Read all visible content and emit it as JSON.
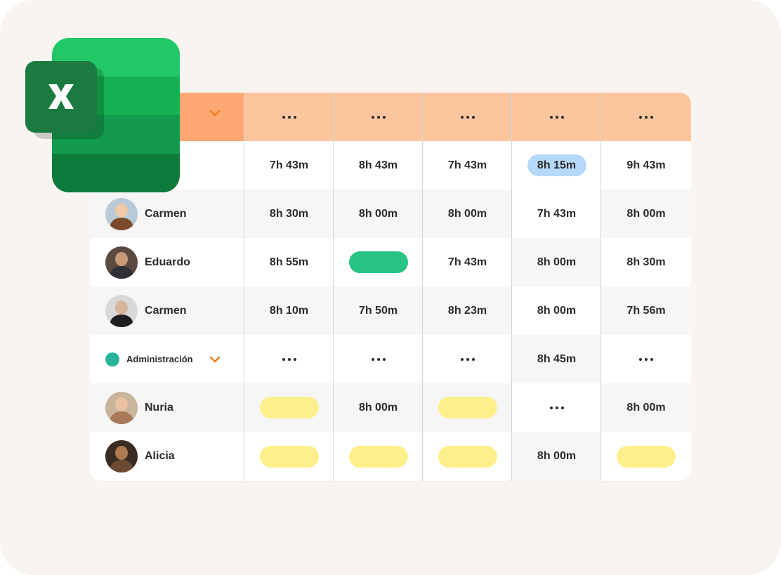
{
  "colors": {
    "header_bg": "#fdc59d",
    "header_first_cell": "#fda873",
    "accent_chevron": "#f07d1a",
    "pill_yellow": "#fdf08c",
    "pill_green": "#27c485",
    "pill_blue": "#b6d9fb",
    "group_dot": "#2bb39a"
  },
  "header": {
    "chevron_icon": "chevron-down-icon",
    "more_icon": "ellipsis-icon"
  },
  "rows": [
    {
      "name": "",
      "cells": [
        "7h 43m",
        "8h 43m",
        "7h 43m",
        "8h 15m",
        "9h 43m"
      ]
    },
    {
      "name": "Carmen",
      "cells": [
        "8h 30m",
        "8h 00m",
        "8h 00m",
        "7h 43m",
        "8h 00m"
      ]
    },
    {
      "name": "Eduardo",
      "cells": [
        "8h 55m",
        "",
        "7h 43m",
        "8h 00m",
        "8h 30m"
      ]
    },
    {
      "name": "Carmen",
      "cells": [
        "8h 10m",
        "7h 50m",
        "8h 23m",
        "8h 00m",
        "7h 56m"
      ]
    },
    {
      "name": "Administración",
      "cells": [
        "",
        "",
        "",
        "8h 45m",
        ""
      ]
    },
    {
      "name": "Nuria",
      "cells": [
        "",
        "8h 00m",
        "",
        "",
        "8h 00m"
      ]
    },
    {
      "name": "Alicia",
      "cells": [
        "",
        "",
        "",
        "8h 00m",
        ""
      ]
    }
  ]
}
